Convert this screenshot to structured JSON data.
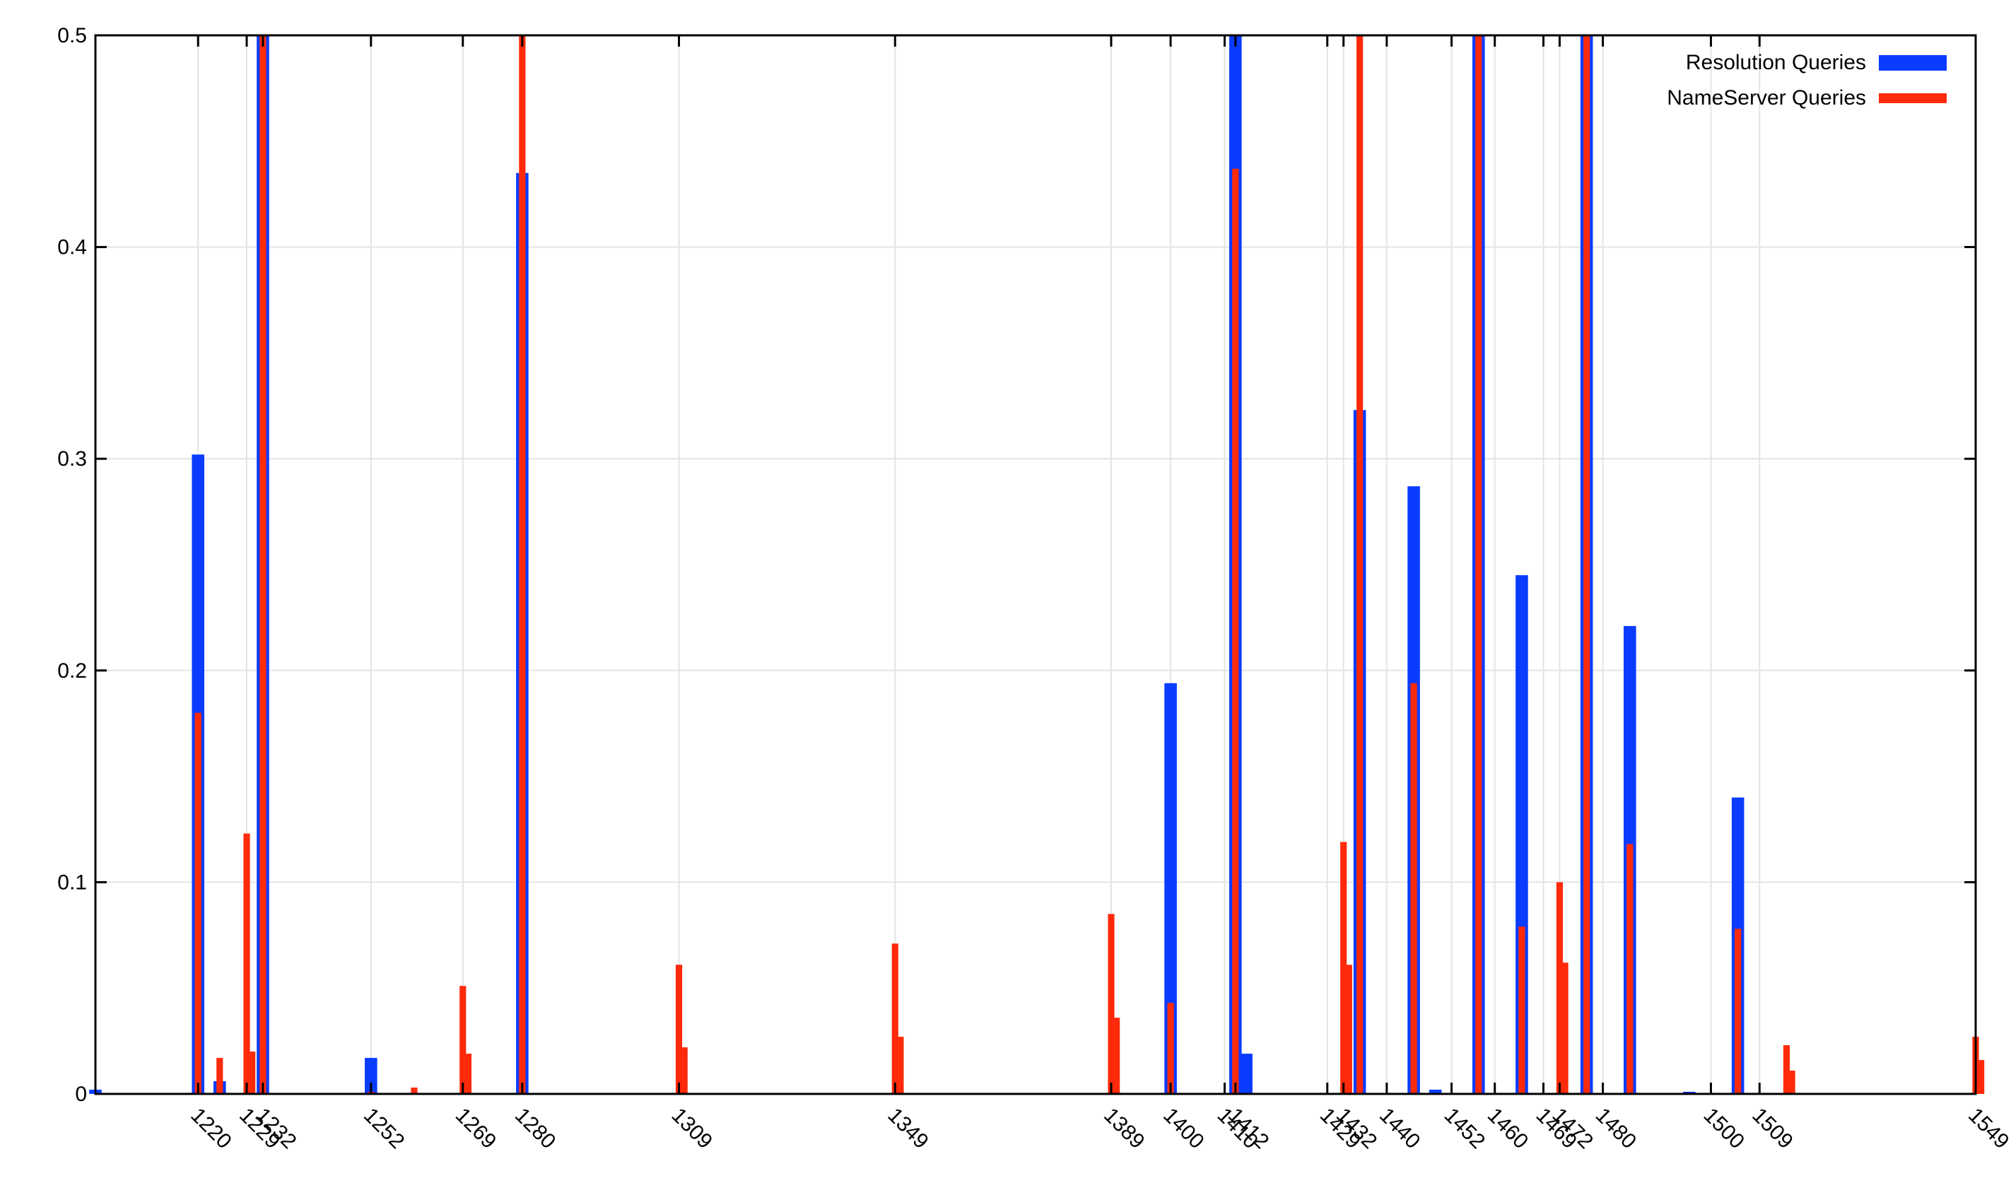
{
  "chart_data": {
    "type": "bar",
    "title": "",
    "xlabel": "",
    "ylabel": "",
    "ylim": [
      0,
      0.5
    ],
    "xlim": [
      1201,
      1549
    ],
    "yticks": [
      "0",
      "0.1",
      "0.2",
      "0.3",
      "0.4",
      "0.5"
    ],
    "xticks": [
      "1220",
      "1229",
      "1232",
      "1252",
      "1269",
      "1280",
      "1309",
      "1349",
      "1389",
      "1400",
      "1410",
      "1412",
      "1429",
      "1432",
      "1440",
      "1452",
      "1460",
      "1469",
      "1472",
      "1480",
      "1500",
      "1509",
      "1549"
    ],
    "grid": true,
    "legend_position": "top-right",
    "colors": {
      "resolution": "#0a3cff",
      "nameserver": "#ff2a0a"
    },
    "series": [
      {
        "name": "Resolution Queries",
        "points": [
          [
            1201,
            0.002
          ],
          [
            1220,
            0.302
          ],
          [
            1224,
            0.006
          ],
          [
            1232,
            0.5
          ],
          [
            1252,
            0.017
          ],
          [
            1280,
            0.435
          ],
          [
            1400,
            0.194
          ],
          [
            1412,
            0.5
          ],
          [
            1414,
            0.019
          ],
          [
            1435,
            0.323
          ],
          [
            1445,
            0.287
          ],
          [
            1449,
            0.002
          ],
          [
            1457,
            0.5
          ],
          [
            1465,
            0.245
          ],
          [
            1477,
            0.5
          ],
          [
            1485,
            0.221
          ],
          [
            1496,
            0.001
          ],
          [
            1505,
            0.14
          ]
        ]
      },
      {
        "name": "NameServer Queries",
        "points": [
          [
            1220,
            0.18
          ],
          [
            1224,
            0.017
          ],
          [
            1229,
            0.123
          ],
          [
            1230,
            0.02
          ],
          [
            1232,
            0.5
          ],
          [
            1252,
            0.001
          ],
          [
            1260,
            0.003
          ],
          [
            1269,
            0.051
          ],
          [
            1270,
            0.019
          ],
          [
            1280,
            0.5
          ],
          [
            1309,
            0.061
          ],
          [
            1310,
            0.022
          ],
          [
            1349,
            0.071
          ],
          [
            1350,
            0.027
          ],
          [
            1389,
            0.085
          ],
          [
            1390,
            0.036
          ],
          [
            1400,
            0.043
          ],
          [
            1412,
            0.437
          ],
          [
            1432,
            0.119
          ],
          [
            1433,
            0.061
          ],
          [
            1435,
            0.5
          ],
          [
            1445,
            0.194
          ],
          [
            1457,
            0.5
          ],
          [
            1465,
            0.079
          ],
          [
            1472,
            0.1
          ],
          [
            1473,
            0.062
          ],
          [
            1477,
            0.5
          ],
          [
            1485,
            0.118
          ],
          [
            1505,
            0.078
          ],
          [
            1514,
            0.023
          ],
          [
            1515,
            0.011
          ],
          [
            1549,
            0.027
          ],
          [
            1550,
            0.016
          ]
        ]
      }
    ]
  }
}
